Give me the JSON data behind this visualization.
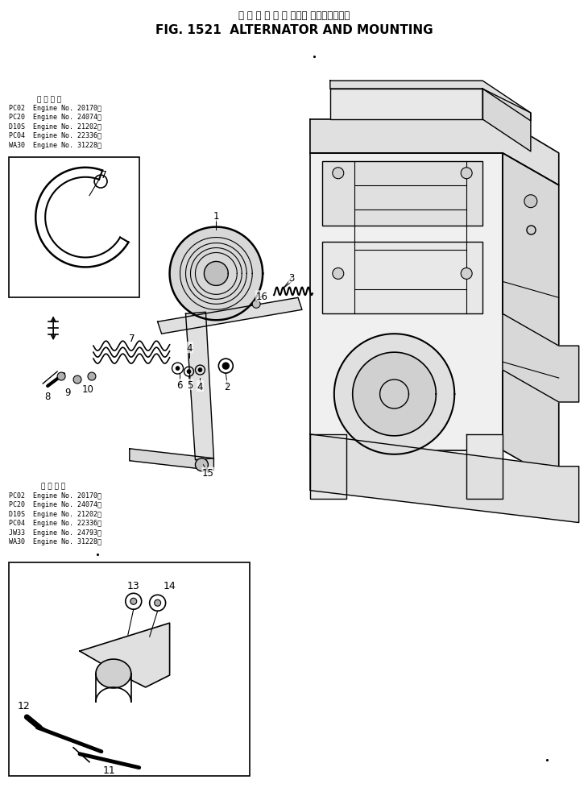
{
  "title_japanese": "オ ル タ ネ ー タ および マウンティング",
  "title_english": "FIG. 1521  ALTERNATOR AND MOUNTING",
  "background_color": "#ffffff",
  "fig_width": 7.3,
  "fig_height": 9.79,
  "top_applicability_title": "適 用 号 機",
  "top_applicability_lines": [
    "PC02  Engine No. 20170～",
    "PC20  Engine No. 24074～",
    "D10S  Engine No. 21202～",
    "PC04  Engine No. 22336～",
    "WA30  Engine No. 31228～"
  ],
  "bottom_applicability_title": "適 用 号 機",
  "bottom_applicability_lines": [
    "PC02  Engine No. 20170～",
    "PC20  Engine No. 24074～",
    "D10S  Engine No. 21202～",
    "PC04  Engine No. 22336～",
    "JW33  Engine No. 24793～",
    "WA30  Engine No. 31228～"
  ],
  "text_color": "#000000",
  "line_color": "#000000"
}
